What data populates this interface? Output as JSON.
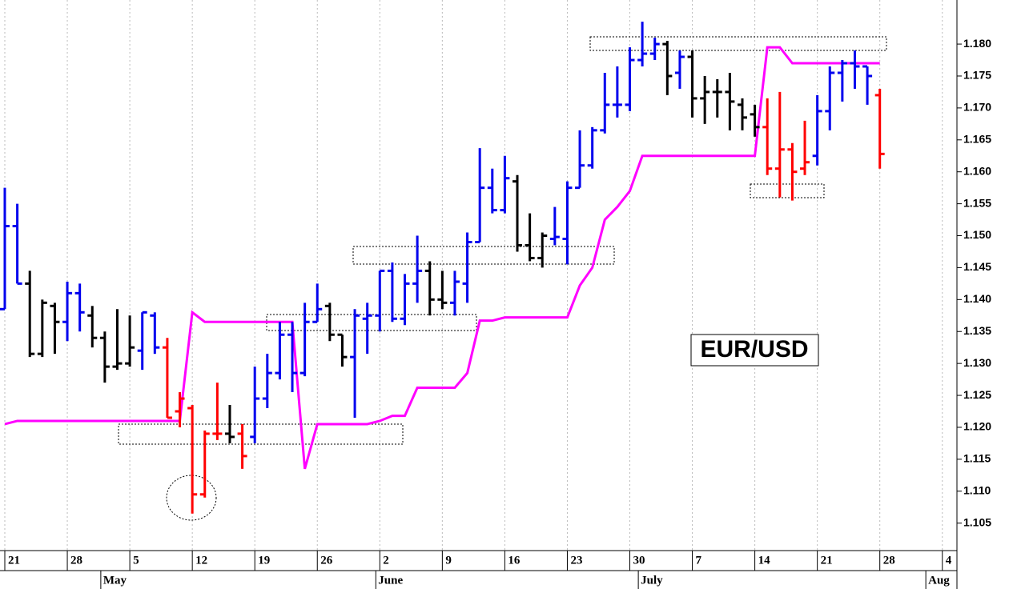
{
  "chart_data": {
    "type": "ohlc",
    "annotation": "EUR/USD",
    "categories": [
      "21",
      null,
      null,
      null,
      null,
      "28",
      null,
      null,
      null,
      null,
      "5",
      null,
      null,
      null,
      null,
      "12",
      null,
      null,
      null,
      null,
      "19",
      null,
      null,
      null,
      null,
      "26",
      null,
      null,
      null,
      null,
      "2",
      null,
      null,
      null,
      null,
      "9",
      null,
      null,
      null,
      null,
      "16",
      null,
      null,
      null,
      null,
      "23",
      null,
      null,
      null,
      null,
      "30",
      null,
      null,
      null,
      null,
      "7",
      null,
      null,
      null,
      null,
      "14",
      null,
      null,
      null,
      null,
      "21",
      null,
      null,
      null,
      null,
      "28",
      null,
      null,
      null,
      null,
      "4",
      null
    ],
    "months": [
      null,
      null,
      null,
      null,
      null,
      null,
      null,
      null,
      "May",
      null,
      null,
      null,
      null,
      null,
      null,
      null,
      null,
      null,
      null,
      null,
      null,
      null,
      null,
      null,
      null,
      null,
      null,
      null,
      null,
      null,
      "June",
      null,
      null,
      null,
      null,
      null,
      null,
      null,
      null,
      null,
      null,
      null,
      null,
      null,
      null,
      null,
      null,
      null,
      null,
      null,
      null,
      "July",
      null,
      null,
      null,
      null,
      null,
      null,
      null,
      null,
      null,
      null,
      null,
      null,
      null,
      null,
      null,
      null,
      null,
      null,
      null,
      null,
      null,
      null,
      "Aug",
      null,
      null
    ],
    "open": [
      1.1385,
      1.1515,
      1.1425,
      1.1315,
      1.139,
      1.1365,
      1.141,
      1.1375,
      1.134,
      1.1295,
      1.13,
      1.132,
      1.1375,
      1.1325,
      1.1225,
      1.123,
      1.1095,
      1.119,
      1.119,
      1.119,
      1.1185,
      1.1245,
      1.1285,
      1.1345,
      1.1285,
      1.1365,
      1.139,
      1.1345,
      1.131,
      1.137,
      1.1375,
      1.1445,
      1.137,
      1.1425,
      1.1445,
      1.14,
      1.1395,
      1.1425,
      1.149,
      1.1575,
      1.154,
      1.1585,
      1.1485,
      1.1465,
      1.1495,
      1.1495,
      1.1575,
      1.161,
      1.1665,
      1.1705,
      1.1705,
      1.1775,
      1.1785,
      1.18,
      1.1755,
      1.178,
      1.1715,
      1.1725,
      1.1725,
      1.1705,
      1.169,
      1.167,
      1.1605,
      1.1635,
      1.1605,
      1.1625,
      1.1695,
      1.1755,
      1.177,
      1.1765,
      1.172,
      null,
      null,
      null,
      null,
      null,
      null
    ],
    "high": [
      1.1575,
      1.155,
      1.1445,
      1.14,
      1.1395,
      1.1428,
      1.1425,
      1.139,
      1.135,
      1.1385,
      1.1375,
      1.138,
      1.138,
      1.134,
      1.1255,
      1.1235,
      1.1195,
      1.127,
      1.1235,
      1.1205,
      1.1295,
      1.1315,
      1.1365,
      1.1365,
      1.1395,
      1.1425,
      1.1395,
      1.1345,
      1.1385,
      1.1395,
      1.1445,
      1.1458,
      1.144,
      1.15,
      1.146,
      1.1445,
      1.1445,
      1.1505,
      1.1637,
      1.1605,
      1.1625,
      1.1595,
      1.1535,
      1.1505,
      1.1545,
      1.1585,
      1.1665,
      1.167,
      1.1755,
      1.1765,
      1.1795,
      1.1835,
      1.181,
      1.1805,
      1.179,
      1.179,
      1.175,
      1.1745,
      1.1755,
      1.1715,
      1.1705,
      1.1715,
      1.1725,
      1.1645,
      1.168,
      1.172,
      1.1765,
      1.1775,
      1.179,
      1.1765,
      1.173,
      null,
      null,
      null,
      null,
      null,
      null
    ],
    "low": [
      1.1385,
      1.1425,
      1.131,
      1.131,
      1.1315,
      1.1335,
      1.135,
      1.1325,
      1.127,
      1.129,
      1.1295,
      1.129,
      1.1315,
      1.1215,
      1.12,
      1.1065,
      1.109,
      1.118,
      1.1175,
      1.1135,
      1.1175,
      1.123,
      1.1275,
      1.1255,
      1.128,
      1.1365,
      1.1335,
      1.1295,
      1.1215,
      1.1315,
      1.135,
      1.1365,
      1.136,
      1.1395,
      1.1375,
      1.1385,
      1.1375,
      1.1395,
      1.149,
      1.1535,
      1.1535,
      1.1475,
      1.146,
      1.145,
      1.1485,
      1.1455,
      1.1575,
      1.1605,
      1.166,
      1.1685,
      1.1695,
      1.1765,
      1.1775,
      1.172,
      1.173,
      1.1685,
      1.1675,
      1.1685,
      1.1665,
      1.1665,
      1.1655,
      1.1595,
      1.156,
      1.1555,
      1.1595,
      1.161,
      1.1665,
      1.171,
      1.173,
      1.1705,
      1.1605,
      null,
      null,
      null,
      null,
      null,
      null
    ],
    "close": [
      1.1515,
      1.1425,
      1.1315,
      1.1395,
      1.1365,
      1.141,
      1.138,
      1.134,
      1.1295,
      1.13,
      1.1325,
      1.138,
      1.1325,
      1.1215,
      1.1245,
      1.1095,
      1.119,
      1.119,
      1.1185,
      1.1155,
      1.1245,
      1.1285,
      1.1345,
      1.1285,
      1.1365,
      1.1385,
      1.1345,
      1.131,
      1.1375,
      1.1375,
      1.1445,
      1.137,
      1.1425,
      1.1445,
      1.14,
      1.1395,
      1.1428,
      1.149,
      1.1575,
      1.154,
      1.159,
      1.1485,
      1.1465,
      1.15,
      1.1498,
      1.1575,
      1.161,
      1.1665,
      1.1705,
      1.1705,
      1.1775,
      1.1785,
      1.18,
      1.175,
      1.178,
      1.1715,
      1.1725,
      1.1725,
      1.171,
      1.1685,
      1.167,
      1.1605,
      1.1635,
      1.16,
      1.1615,
      1.1695,
      1.1755,
      1.177,
      1.1765,
      1.175,
      1.1628,
      null,
      null,
      null,
      null,
      null,
      null
    ],
    "bar_colors": [
      "#0000ee",
      "#0000ee",
      "#000000",
      "#000000",
      "#000000",
      "#0000ee",
      "#0000ee",
      "#000000",
      "#000000",
      "#000000",
      "#000000",
      "#0000ee",
      "#0000ee",
      "#ff0000",
      "#ff0000",
      "#ff0000",
      "#ff0000",
      "#ff0000",
      "#000000",
      "#ff0000",
      "#0000ee",
      "#0000ee",
      "#0000ee",
      "#0000ee",
      "#0000ee",
      "#0000ee",
      "#000000",
      "#000000",
      "#0000ee",
      "#0000ee",
      "#0000ee",
      "#0000ee",
      "#0000ee",
      "#0000ee",
      "#000000",
      "#000000",
      "#0000ee",
      "#0000ee",
      "#0000ee",
      "#0000ee",
      "#0000ee",
      "#000000",
      "#000000",
      "#000000",
      "#0000ee",
      "#0000ee",
      "#0000ee",
      "#0000ee",
      "#0000ee",
      "#0000ee",
      "#0000ee",
      "#0000ee",
      "#0000ee",
      "#000000",
      "#0000ee",
      "#000000",
      "#000000",
      "#000000",
      "#000000",
      "#000000",
      "#000000",
      "#ff0000",
      "#ff0000",
      "#ff0000",
      "#ff0000",
      "#0000ee",
      "#0000ee",
      "#0000ee",
      "#0000ee",
      "#0000ee",
      "#ff0000",
      null,
      null,
      null,
      null,
      null,
      null
    ],
    "stop_line": {
      "color": "#ff00ff",
      "values": [
        1.1205,
        1.121,
        1.121,
        1.121,
        1.121,
        1.121,
        1.121,
        1.121,
        1.121,
        1.121,
        1.121,
        1.121,
        1.121,
        1.121,
        1.121,
        1.138,
        1.1365,
        1.1365,
        1.1365,
        1.1365,
        1.1365,
        1.1365,
        1.1365,
        1.1365,
        1.1135,
        1.1205,
        1.1205,
        1.1205,
        1.1205,
        1.1205,
        1.121,
        1.1218,
        1.1218,
        1.1262,
        1.1262,
        1.1262,
        1.1262,
        1.1285,
        1.1367,
        1.1367,
        1.1372,
        1.1372,
        1.1372,
        1.1372,
        1.1372,
        1.1372,
        1.1422,
        1.145,
        1.1525,
        1.1545,
        1.157,
        1.1625,
        1.1625,
        1.1625,
        1.1625,
        1.1625,
        1.1625,
        1.1625,
        1.1625,
        1.1625,
        1.1625,
        1.1795,
        1.1795,
        1.177,
        1.177,
        1.177,
        1.177,
        1.177,
        1.177,
        1.177,
        1.177,
        null,
        null,
        null,
        null,
        null,
        null
      ]
    },
    "ylim": [
      1.1007,
      1.1869
    ],
    "yticks": [
      1.105,
      {
        "value": 1.11,
        "label": "1.110"
      },
      1.115,
      {
        "value": 1.12,
        "label": "1.120"
      },
      1.125,
      {
        "value": 1.13,
        "label": "1.130"
      },
      1.135,
      {
        "value": 1.14,
        "label": "1.140"
      },
      1.145,
      {
        "value": 1.15,
        "label": "1.150"
      },
      1.155,
      {
        "value": 1.16,
        "label": "1.160"
      },
      1.165,
      {
        "value": 1.17,
        "label": "1.170"
      },
      1.175,
      {
        "value": 1.18,
        "label": "1.180"
      }
    ],
    "grid": true
  }
}
